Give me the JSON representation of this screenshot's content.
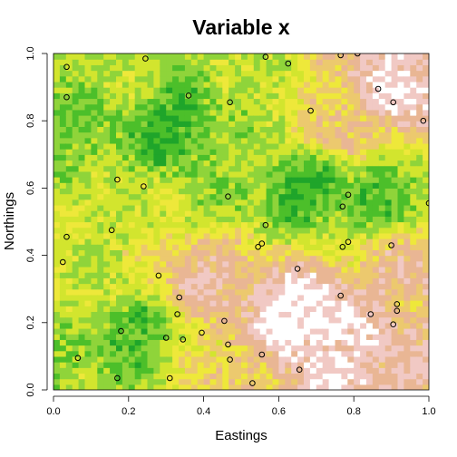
{
  "chart_data": {
    "type": "heatmap",
    "title": "Variable x",
    "xlabel": "Eastings",
    "ylabel": "Northings",
    "xlim": [
      0.0,
      1.0
    ],
    "ylim": [
      0.0,
      1.0
    ],
    "x_ticks": [
      "0.0",
      "0.2",
      "0.4",
      "0.6",
      "0.8",
      "1.0"
    ],
    "y_ticks": [
      "0.0",
      "0.2",
      "0.4",
      "0.6",
      "0.8",
      "1.0"
    ],
    "colors": {
      "palette": [
        "#1fa52a",
        "#4cbf2a",
        "#8fd43a",
        "#d2e52e",
        "#eee83a",
        "#ecc96e",
        "#e9b694",
        "#f1c9c4",
        "#ffffff"
      ],
      "point_stroke": "#000000"
    },
    "surface_regions": [
      {
        "x": 0.3,
        "y": 0.78,
        "level": 0.08
      },
      {
        "x": 0.12,
        "y": 0.78,
        "level": 0.25
      },
      {
        "x": 0.2,
        "y": 0.92,
        "level": 0.35
      },
      {
        "x": 0.55,
        "y": 0.82,
        "level": 0.35
      },
      {
        "x": 0.75,
        "y": 0.78,
        "level": 0.65
      },
      {
        "x": 0.92,
        "y": 0.9,
        "level": 0.88
      },
      {
        "x": 0.2,
        "y": 0.55,
        "level": 0.4
      },
      {
        "x": 0.68,
        "y": 0.6,
        "level": 0.1
      },
      {
        "x": 0.88,
        "y": 0.58,
        "level": 0.2
      },
      {
        "x": 0.45,
        "y": 0.58,
        "level": 0.3
      },
      {
        "x": 0.1,
        "y": 0.3,
        "level": 0.4
      },
      {
        "x": 0.2,
        "y": 0.17,
        "level": 0.15
      },
      {
        "x": 0.08,
        "y": 0.05,
        "level": 0.3
      },
      {
        "x": 0.4,
        "y": 0.35,
        "level": 0.75
      },
      {
        "x": 0.65,
        "y": 0.22,
        "level": 0.98
      },
      {
        "x": 0.75,
        "y": 0.1,
        "level": 0.85
      },
      {
        "x": 0.95,
        "y": 0.35,
        "level": 0.7
      },
      {
        "x": 0.5,
        "y": 0.05,
        "level": 0.6
      }
    ],
    "points": [
      {
        "x": 0.035,
        "y": 0.96
      },
      {
        "x": 0.245,
        "y": 0.985
      },
      {
        "x": 0.565,
        "y": 0.99
      },
      {
        "x": 0.625,
        "y": 0.97
      },
      {
        "x": 0.765,
        "y": 0.995
      },
      {
        "x": 0.81,
        "y": 1.0
      },
      {
        "x": 0.035,
        "y": 0.87
      },
      {
        "x": 0.36,
        "y": 0.875
      },
      {
        "x": 0.47,
        "y": 0.855
      },
      {
        "x": 0.865,
        "y": 0.895
      },
      {
        "x": 0.905,
        "y": 0.855
      },
      {
        "x": 0.685,
        "y": 0.83
      },
      {
        "x": 0.985,
        "y": 0.8
      },
      {
        "x": 0.17,
        "y": 0.625
      },
      {
        "x": 0.24,
        "y": 0.605
      },
      {
        "x": 0.465,
        "y": 0.575
      },
      {
        "x": 0.785,
        "y": 0.58
      },
      {
        "x": 0.77,
        "y": 0.545
      },
      {
        "x": 1.0,
        "y": 0.555
      },
      {
        "x": 0.565,
        "y": 0.49
      },
      {
        "x": 0.155,
        "y": 0.475
      },
      {
        "x": 0.035,
        "y": 0.455
      },
      {
        "x": 0.555,
        "y": 0.435
      },
      {
        "x": 0.545,
        "y": 0.425
      },
      {
        "x": 0.785,
        "y": 0.44
      },
      {
        "x": 0.77,
        "y": 0.425
      },
      {
        "x": 0.9,
        "y": 0.43
      },
      {
        "x": 0.025,
        "y": 0.38
      },
      {
        "x": 0.65,
        "y": 0.36
      },
      {
        "x": 0.28,
        "y": 0.34
      },
      {
        "x": 0.765,
        "y": 0.28
      },
      {
        "x": 0.335,
        "y": 0.275
      },
      {
        "x": 0.915,
        "y": 0.255
      },
      {
        "x": 0.915,
        "y": 0.235
      },
      {
        "x": 0.33,
        "y": 0.225
      },
      {
        "x": 0.845,
        "y": 0.225
      },
      {
        "x": 0.455,
        "y": 0.205
      },
      {
        "x": 0.905,
        "y": 0.195
      },
      {
        "x": 0.18,
        "y": 0.175
      },
      {
        "x": 0.395,
        "y": 0.17
      },
      {
        "x": 0.3,
        "y": 0.155
      },
      {
        "x": 0.345,
        "y": 0.15
      },
      {
        "x": 0.465,
        "y": 0.135
      },
      {
        "x": 0.555,
        "y": 0.105
      },
      {
        "x": 0.065,
        "y": 0.095
      },
      {
        "x": 0.47,
        "y": 0.09
      },
      {
        "x": 0.655,
        "y": 0.06
      },
      {
        "x": 0.17,
        "y": 0.035
      },
      {
        "x": 0.31,
        "y": 0.035
      },
      {
        "x": 0.53,
        "y": 0.02
      }
    ]
  }
}
